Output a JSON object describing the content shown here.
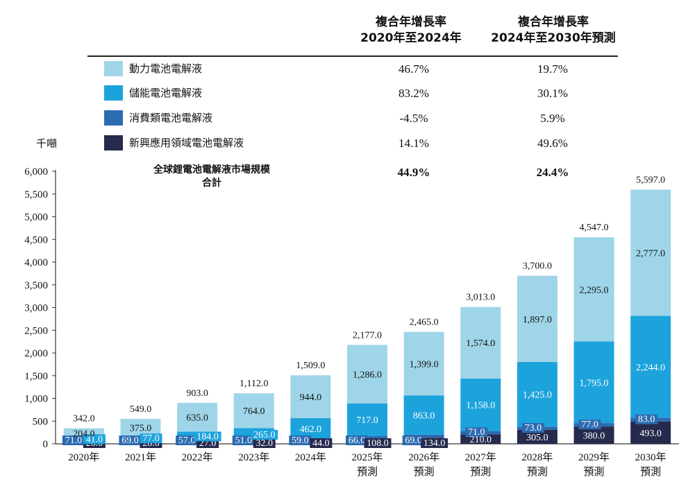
{
  "header": {
    "cagr_1": [
      "複合年增長率",
      "2020年至2024年"
    ],
    "cagr_2": [
      "複合年增長率",
      "2024年至2030年預測"
    ]
  },
  "unit": "千噸",
  "legend": [
    {
      "name": "動力電池電解液",
      "color": "#9fd5e8",
      "cagr_2020_2024": "46.7%",
      "cagr_2024_2030": "19.7%"
    },
    {
      "name": "儲能電池電解液",
      "color": "#1da3dc",
      "cagr_2020_2024": "83.2%",
      "cagr_2024_2030": "30.1%"
    },
    {
      "name": "消費類電池電解液",
      "color": "#2c6bb0",
      "cagr_2020_2024": "-4.5%",
      "cagr_2024_2030": "5.9%"
    },
    {
      "name": "新興應用領域電池電解液",
      "color": "#262a4d",
      "cagr_2020_2024": "14.1%",
      "cagr_2024_2030": "49.6%"
    }
  ],
  "total": {
    "label": [
      "全球鋰電池電解液市場規模",
      "合計"
    ],
    "cagr_2020_2024": "44.9%",
    "cagr_2024_2030": "24.4%"
  },
  "chart_data": {
    "type": "bar",
    "stacked": true,
    "categories": [
      [
        "2020年"
      ],
      [
        "2021年"
      ],
      [
        "2022年"
      ],
      [
        "2023年"
      ],
      [
        "2024年"
      ],
      [
        "2025年",
        "預測"
      ],
      [
        "2026年",
        "預測"
      ],
      [
        "2027年",
        "預測"
      ],
      [
        "2028年",
        "預測"
      ],
      [
        "2029年",
        "預測"
      ],
      [
        "2030年",
        "預測"
      ]
    ],
    "series": [
      {
        "name": "新興應用領域電池電解液",
        "values": [
          26.0,
          28.0,
          27.0,
          32.0,
          44.0,
          108.0,
          134.0,
          210.0,
          305.0,
          380.0,
          493.0
        ],
        "labels": [
          "26.0",
          "28.0",
          "27.0",
          "32.0",
          "44.0",
          "108.0",
          "134.0",
          "210.0",
          "305.0",
          "380.0",
          "493.0"
        ]
      },
      {
        "name": "消費類電池電解液",
        "values": [
          71.0,
          69.0,
          57.0,
          51.0,
          59.0,
          66.0,
          69.0,
          71.0,
          73.0,
          77.0,
          83.0
        ],
        "labels": [
          "71.0",
          "69.0",
          "57.0",
          "51.0",
          "59.0",
          "66.0",
          "69.0",
          "71.0",
          "73.0",
          "77.0",
          "83.0"
        ]
      },
      {
        "name": "儲能電池電解液",
        "values": [
          41.0,
          77.0,
          184.0,
          265.0,
          462.0,
          717.0,
          863.0,
          1158.0,
          1425.0,
          1795.0,
          2244.0
        ],
        "labels": [
          "41.0",
          "77.0",
          "184.0",
          "265.0",
          "462.0",
          "717.0",
          "863.0",
          "1,158.0",
          "1,425.0",
          "1,795.0",
          "2,244.0"
        ]
      },
      {
        "name": "動力電池電解液",
        "values": [
          204.0,
          375.0,
          635.0,
          764.0,
          944.0,
          1286.0,
          1399.0,
          1574.0,
          1897.0,
          2295.0,
          2777.0
        ],
        "labels": [
          "204.0",
          "375.0",
          "635.0",
          "764.0",
          "944.0",
          "1,286.0",
          "1,399.0",
          "1,574.0",
          "1,897.0",
          "2,295.0",
          "2,777.0"
        ]
      }
    ],
    "totals": [
      342.0,
      549.0,
      903.0,
      1112.0,
      1509.0,
      2177.0,
      2465.0,
      3013.0,
      3700.0,
      4547.0,
      5597.0
    ],
    "total_labels": [
      "342.0",
      "549.0",
      "903.0",
      "1,112.0",
      "1,509.0",
      "2,177.0",
      "2,465.0",
      "3,013.0",
      "3,700.0",
      "4,547.0",
      "5,597.0"
    ],
    "yticks": [
      0,
      500,
      1000,
      1500,
      2000,
      2500,
      3000,
      3500,
      4000,
      4500,
      5000,
      5500,
      6000
    ],
    "ytick_labels": [
      "0",
      "500",
      "1,000",
      "1,500",
      "2,000",
      "2,500",
      "3,000",
      "3,500",
      "4,000",
      "4,500",
      "5,000",
      "5,500",
      "6,000"
    ],
    "ylim": [
      0,
      6000
    ],
    "ylabel": "千噸",
    "grid": false
  }
}
